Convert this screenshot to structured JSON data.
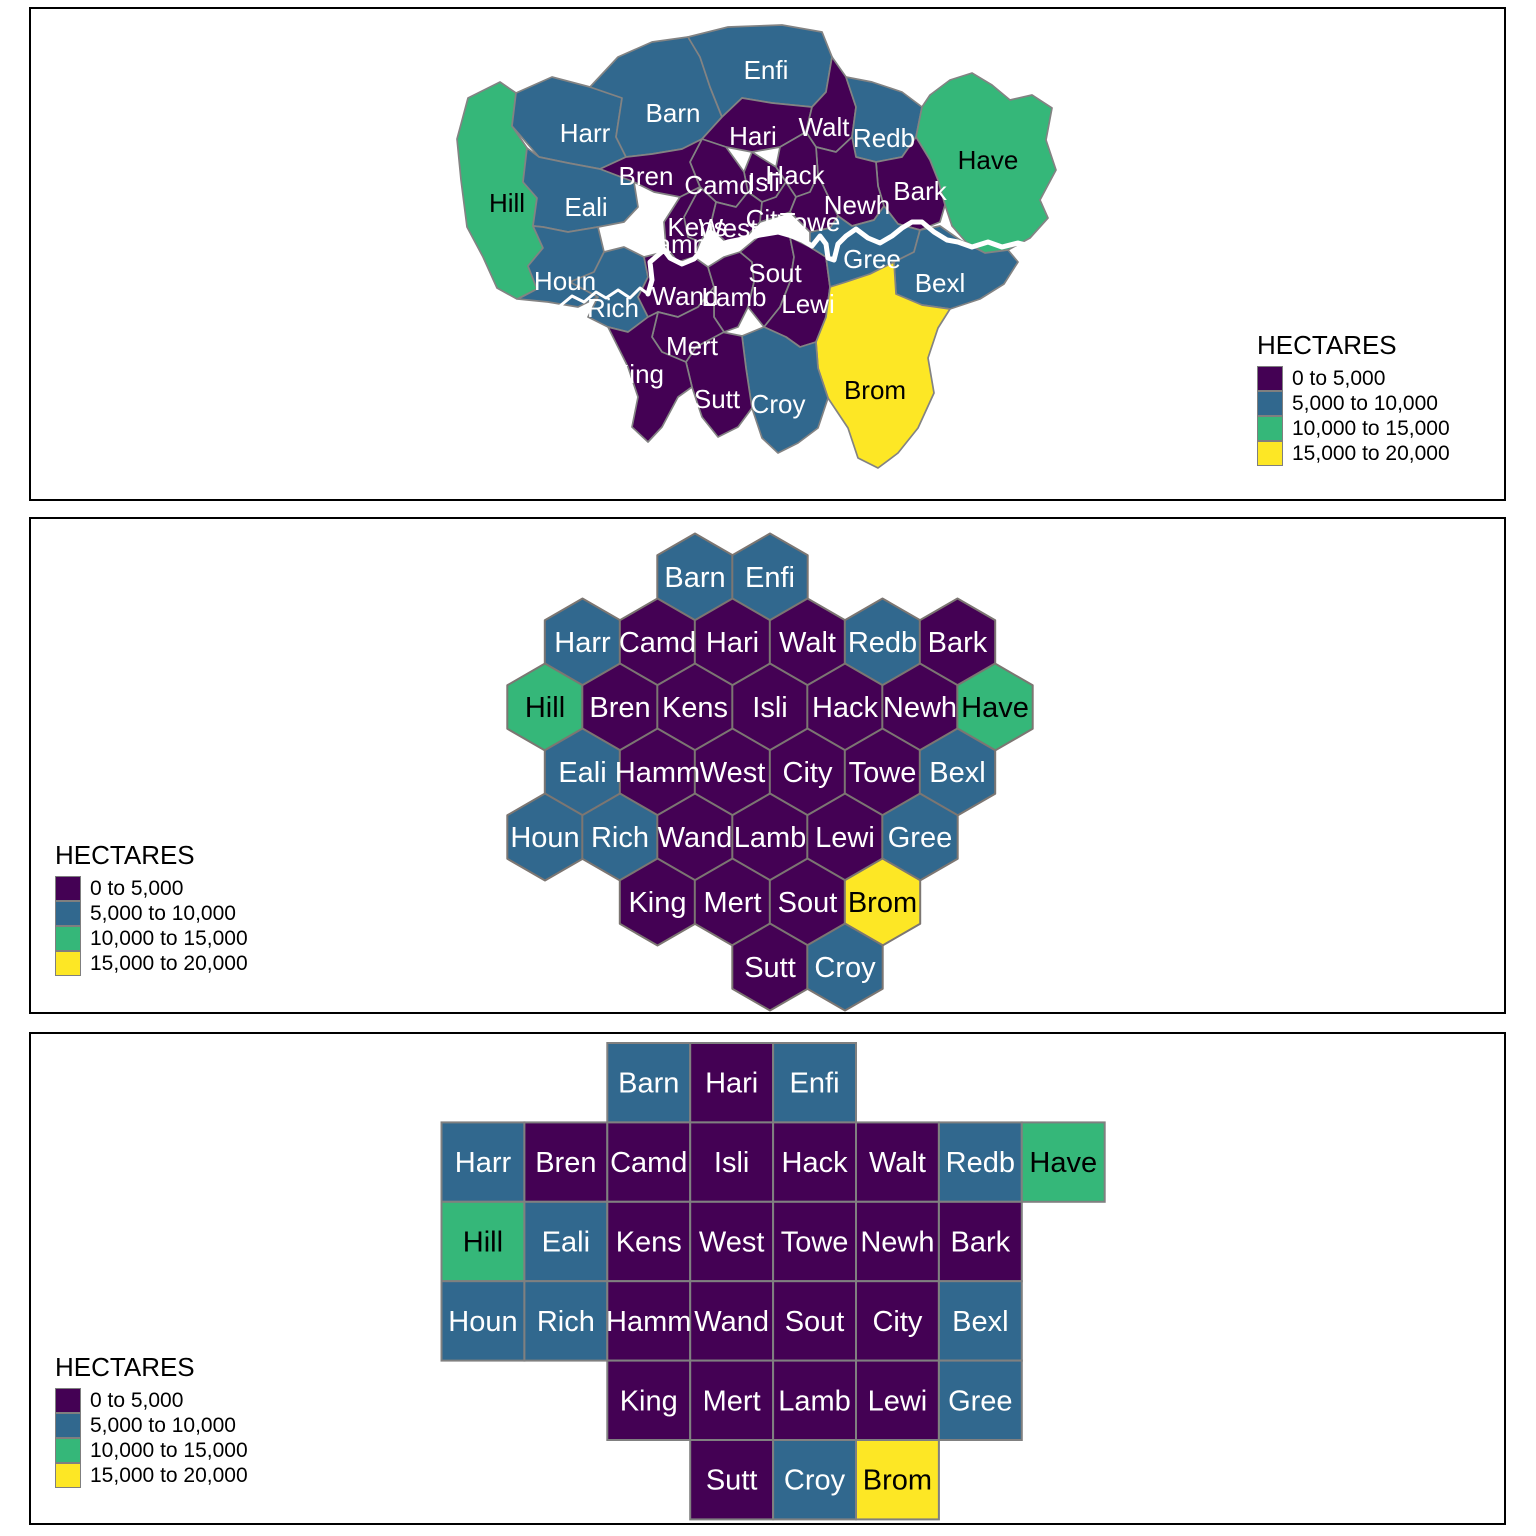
{
  "legend": {
    "title": "HECTARES",
    "classes": [
      {
        "label": "0 to 5,000",
        "color": "#440154",
        "text_color": "#ffffff"
      },
      {
        "label": "5,000 to 10,000",
        "color": "#31688E",
        "text_color": "#ffffff"
      },
      {
        "label": "10,000 to 15,000",
        "color": "#35B779",
        "text_color": "#000000"
      },
      {
        "label": "15,000 to 20,000",
        "color": "#FDE725",
        "text_color": "#000000"
      }
    ]
  },
  "boroughs": [
    {
      "abbr": "Hill",
      "cls": 2
    },
    {
      "abbr": "Harr",
      "cls": 1
    },
    {
      "abbr": "Barn",
      "cls": 1
    },
    {
      "abbr": "Enfi",
      "cls": 1
    },
    {
      "abbr": "Hari",
      "cls": 0
    },
    {
      "abbr": "Walt",
      "cls": 0
    },
    {
      "abbr": "Redb",
      "cls": 1
    },
    {
      "abbr": "Have",
      "cls": 2
    },
    {
      "abbr": "Bark",
      "cls": 0
    },
    {
      "abbr": "Newh",
      "cls": 0
    },
    {
      "abbr": "Hack",
      "cls": 0
    },
    {
      "abbr": "Isli",
      "cls": 0
    },
    {
      "abbr": "Camd",
      "cls": 0
    },
    {
      "abbr": "Bren",
      "cls": 0
    },
    {
      "abbr": "Eali",
      "cls": 1
    },
    {
      "abbr": "West",
      "cls": 0
    },
    {
      "abbr": "City",
      "cls": 0
    },
    {
      "abbr": "Towe",
      "cls": 0
    },
    {
      "abbr": "Kens",
      "cls": 0
    },
    {
      "abbr": "Hamm",
      "cls": 0
    },
    {
      "abbr": "Houn",
      "cls": 1
    },
    {
      "abbr": "Rich",
      "cls": 1
    },
    {
      "abbr": "Wand",
      "cls": 0
    },
    {
      "abbr": "Lamb",
      "cls": 0
    },
    {
      "abbr": "Sout",
      "cls": 0
    },
    {
      "abbr": "Lewi",
      "cls": 0
    },
    {
      "abbr": "Gree",
      "cls": 1
    },
    {
      "abbr": "Bexl",
      "cls": 1
    },
    {
      "abbr": "Brom",
      "cls": 3
    },
    {
      "abbr": "Croy",
      "cls": 1
    },
    {
      "abbr": "Sutt",
      "cls": 0
    },
    {
      "abbr": "Mert",
      "cls": 0
    },
    {
      "abbr": "King",
      "cls": 0
    }
  ],
  "hex_map": {
    "rows": [
      {
        "offset": false,
        "cells": [
          {
            "abbr": "Barn",
            "col": 2
          },
          {
            "abbr": "Enfi",
            "col": 3
          }
        ]
      },
      {
        "offset": true,
        "cells": [
          {
            "abbr": "Harr",
            "col": 0
          },
          {
            "abbr": "Camd",
            "col": 1
          },
          {
            "abbr": "Hari",
            "col": 2
          },
          {
            "abbr": "Walt",
            "col": 3
          },
          {
            "abbr": "Redb",
            "col": 4
          },
          {
            "abbr": "Bark",
            "col": 5
          }
        ]
      },
      {
        "offset": false,
        "cells": [
          {
            "abbr": "Hill",
            "col": 0
          },
          {
            "abbr": "Bren",
            "col": 1
          },
          {
            "abbr": "Kens",
            "col": 2
          },
          {
            "abbr": "Isli",
            "col": 3
          },
          {
            "abbr": "Hack",
            "col": 4
          },
          {
            "abbr": "Newh",
            "col": 5
          },
          {
            "abbr": "Have",
            "col": 6
          }
        ]
      },
      {
        "offset": true,
        "cells": [
          {
            "abbr": "Eali",
            "col": 0
          },
          {
            "abbr": "Hamm",
            "col": 1
          },
          {
            "abbr": "West",
            "col": 2
          },
          {
            "abbr": "City",
            "col": 3
          },
          {
            "abbr": "Towe",
            "col": 4
          },
          {
            "abbr": "Bexl",
            "col": 5
          }
        ]
      },
      {
        "offset": false,
        "cells": [
          {
            "abbr": "Houn",
            "col": 0
          },
          {
            "abbr": "Rich",
            "col": 1
          },
          {
            "abbr": "Wand",
            "col": 2
          },
          {
            "abbr": "Lamb",
            "col": 3
          },
          {
            "abbr": "Lewi",
            "col": 4
          },
          {
            "abbr": "Gree",
            "col": 5
          }
        ]
      },
      {
        "offset": true,
        "cells": [
          {
            "abbr": "King",
            "col": 1
          },
          {
            "abbr": "Mert",
            "col": 2
          },
          {
            "abbr": "Sout",
            "col": 3
          },
          {
            "abbr": "Brom",
            "col": 4
          }
        ]
      },
      {
        "offset": false,
        "cells": [
          {
            "abbr": "Sutt",
            "col": 3
          },
          {
            "abbr": "Croy",
            "col": 4
          }
        ]
      }
    ]
  },
  "grid_map": {
    "rows": [
      {
        "cells": [
          {
            "abbr": "Barn",
            "col": 3
          },
          {
            "abbr": "Hari",
            "col": 4
          },
          {
            "abbr": "Enfi",
            "col": 5
          }
        ]
      },
      {
        "cells": [
          {
            "abbr": "Harr",
            "col": 1
          },
          {
            "abbr": "Bren",
            "col": 2
          },
          {
            "abbr": "Camd",
            "col": 3
          },
          {
            "abbr": "Isli",
            "col": 4
          },
          {
            "abbr": "Hack",
            "col": 5
          },
          {
            "abbr": "Walt",
            "col": 6
          },
          {
            "abbr": "Redb",
            "col": 7
          },
          {
            "abbr": "Have",
            "col": 8
          }
        ]
      },
      {
        "cells": [
          {
            "abbr": "Hill",
            "col": 1
          },
          {
            "abbr": "Eali",
            "col": 2
          },
          {
            "abbr": "Kens",
            "col": 3
          },
          {
            "abbr": "West",
            "col": 4
          },
          {
            "abbr": "Towe",
            "col": 5
          },
          {
            "abbr": "Newh",
            "col": 6
          },
          {
            "abbr": "Bark",
            "col": 7
          }
        ]
      },
      {
        "cells": [
          {
            "abbr": "Houn",
            "col": 1
          },
          {
            "abbr": "Rich",
            "col": 2
          },
          {
            "abbr": "Hamm",
            "col": 3
          },
          {
            "abbr": "Wand",
            "col": 4
          },
          {
            "abbr": "Sout",
            "col": 5
          },
          {
            "abbr": "City",
            "col": 6
          },
          {
            "abbr": "Bexl",
            "col": 7
          }
        ]
      },
      {
        "cells": [
          {
            "abbr": "King",
            "col": 3
          },
          {
            "abbr": "Mert",
            "col": 4
          },
          {
            "abbr": "Lamb",
            "col": 5
          },
          {
            "abbr": "Lewi",
            "col": 6
          },
          {
            "abbr": "Gree",
            "col": 7
          }
        ]
      },
      {
        "cells": [
          {
            "abbr": "Sutt",
            "col": 4
          },
          {
            "abbr": "Croy",
            "col": 5
          },
          {
            "abbr": "Brom",
            "col": 6
          }
        ]
      }
    ]
  },
  "chart_data": {
    "type": "choropleth",
    "variable": "HECTARES",
    "panels": [
      "geographic borough map",
      "hexagon cartogram",
      "square grid cartogram"
    ],
    "classes": [
      "0 to 5,000",
      "5,000 to 10,000",
      "10,000 to 15,000",
      "15,000 to 20,000"
    ],
    "values": {
      "Hill": "10,000 to 15,000",
      "Harr": "5,000 to 10,000",
      "Barn": "5,000 to 10,000",
      "Enfi": "5,000 to 10,000",
      "Hari": "0 to 5,000",
      "Walt": "0 to 5,000",
      "Redb": "5,000 to 10,000",
      "Have": "10,000 to 15,000",
      "Bark": "0 to 5,000",
      "Newh": "0 to 5,000",
      "Hack": "0 to 5,000",
      "Isli": "0 to 5,000",
      "Camd": "0 to 5,000",
      "Bren": "0 to 5,000",
      "Eali": "5,000 to 10,000",
      "West": "0 to 5,000",
      "City": "0 to 5,000",
      "Towe": "0 to 5,000",
      "Kens": "0 to 5,000",
      "Hamm": "0 to 5,000",
      "Houn": "5,000 to 10,000",
      "Rich": "5,000 to 10,000",
      "Wand": "0 to 5,000",
      "Lamb": "0 to 5,000",
      "Sout": "0 to 5,000",
      "Lewi": "0 to 5,000",
      "Gree": "5,000 to 10,000",
      "Bexl": "5,000 to 10,000",
      "Brom": "15,000 to 20,000",
      "Croy": "5,000 to 10,000",
      "Sutt": "0 to 5,000",
      "Mert": "0 to 5,000",
      "King": "0 to 5,000"
    }
  }
}
